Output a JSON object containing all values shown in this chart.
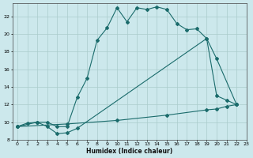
{
  "xlabel": "Humidex (Indice chaleur)",
  "xlim": [
    -0.5,
    23
  ],
  "ylim": [
    8,
    23.5
  ],
  "yticks": [
    8,
    10,
    12,
    14,
    16,
    18,
    20,
    22
  ],
  "xticks": [
    0,
    1,
    2,
    3,
    4,
    5,
    6,
    7,
    8,
    9,
    10,
    11,
    12,
    13,
    14,
    15,
    16,
    17,
    18,
    19,
    20,
    21,
    22,
    23
  ],
  "bg_color": "#cce8ec",
  "grid_color": "#aacccc",
  "line_color": "#1a6b6b",
  "line1_x": [
    0,
    1,
    2,
    3,
    4,
    5,
    6,
    7,
    8,
    9,
    10,
    11,
    12,
    13,
    14,
    15,
    16,
    17,
    18,
    19,
    20,
    21,
    22
  ],
  "line1_y": [
    9.5,
    9.9,
    10.0,
    10.0,
    9.5,
    9.5,
    12.8,
    15.0,
    19.3,
    20.7,
    23.0,
    21.4,
    23.0,
    22.8,
    23.1,
    22.8,
    21.2,
    20.5,
    20.6,
    19.5,
    13.0,
    12.5,
    12.0
  ],
  "line2_x": [
    0,
    2,
    3,
    4,
    5,
    6,
    19,
    20,
    22
  ],
  "line2_y": [
    9.5,
    10.0,
    9.5,
    8.7,
    8.8,
    9.3,
    19.5,
    17.2,
    12.0
  ],
  "line3_x": [
    0,
    5,
    10,
    15,
    19,
    20,
    21,
    22
  ],
  "line3_y": [
    9.5,
    9.8,
    10.2,
    10.8,
    11.4,
    11.5,
    11.8,
    12.0
  ]
}
